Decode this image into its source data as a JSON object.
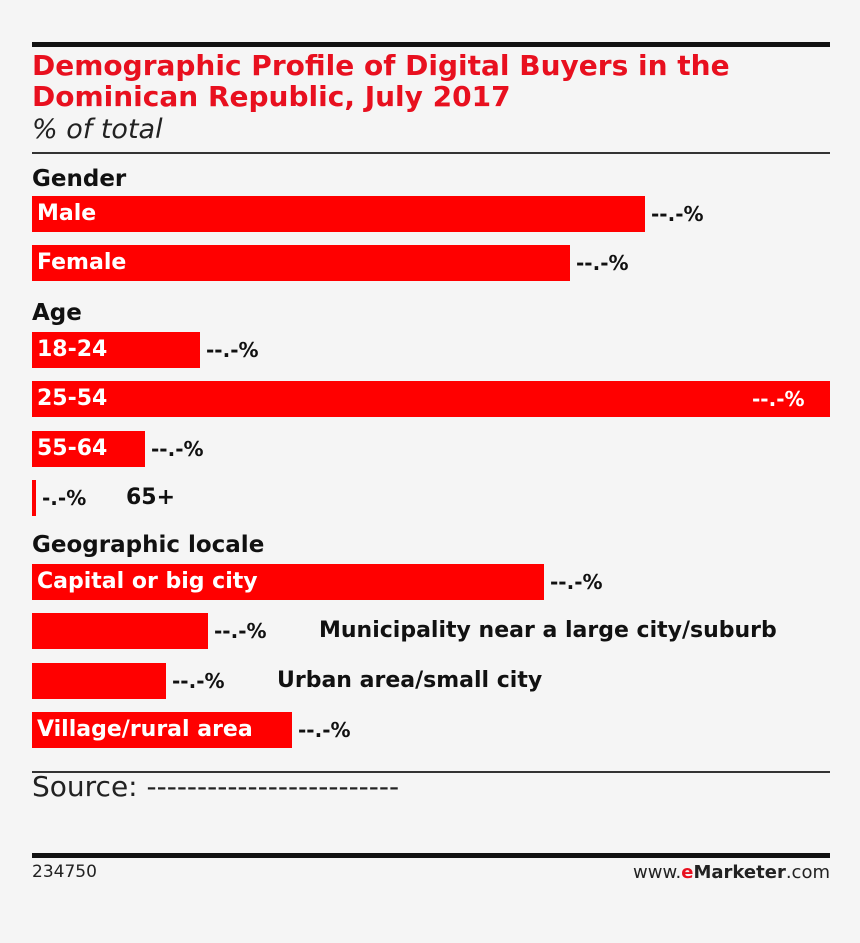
{
  "chart_data": {
    "type": "bar",
    "orientation": "horizontal",
    "title": "Demographic Profile of Digital Buyers in the Dominican Republic, July 2017",
    "subtitle": "% of total",
    "groups": [
      {
        "name": "Gender",
        "bars": [
          {
            "label": "Male",
            "value": 73,
            "value_label": "--.-%"
          },
          {
            "label": "Female",
            "value": 64,
            "value_label": "--.-%"
          }
        ]
      },
      {
        "name": "Age",
        "bars": [
          {
            "label": "18-24",
            "value": 20,
            "value_label": "--.-%"
          },
          {
            "label": "25-54",
            "value": 95,
            "value_label": "--.-%"
          },
          {
            "label": "55-64",
            "value": 13.5,
            "value_label": "--.-%"
          },
          {
            "label": "65+",
            "value": 0.5,
            "value_label": "-.-%"
          }
        ]
      },
      {
        "name": "Geographic locale",
        "bars": [
          {
            "label": "Capital or big city",
            "value": 61,
            "value_label": "--.-%"
          },
          {
            "label": "Municipality near a large city/suburb",
            "value": 21,
            "value_label": "--.-%"
          },
          {
            "label": "Urban area/small city",
            "value": 16,
            "value_label": "--.-%"
          },
          {
            "label": "Village/rural area",
            "value": 31,
            "value_label": "--.-%"
          }
        ]
      }
    ],
    "xlim": [
      0,
      95
    ]
  },
  "footer": {
    "source": "Source: -------------------------",
    "chart_id": "234750",
    "brand_prefix": "www.",
    "brand_e": "e",
    "brand_name": "Marketer",
    "brand_suffix": ".com"
  },
  "colors": {
    "bar": "#ff0000",
    "title": "#e8101f"
  }
}
